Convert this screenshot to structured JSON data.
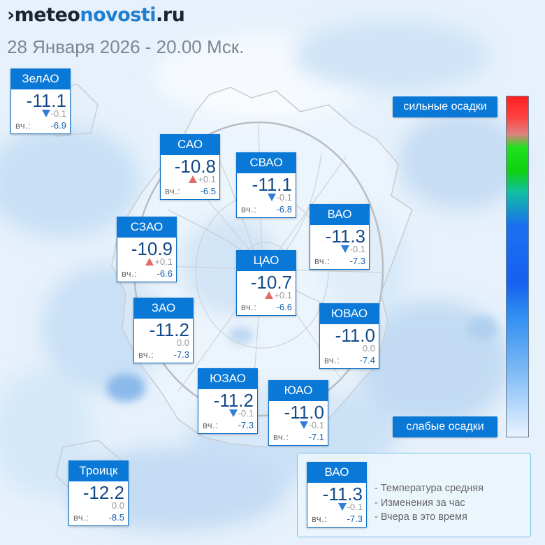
{
  "logo": {
    "mark": "›",
    "part1": "meteo",
    "part2": "novosti",
    "part3": ".ru"
  },
  "date": "28 Января 2026 - 20.00 Мск.",
  "colors": {
    "accent": "#0a78d6",
    "up": "#e46a6a",
    "down": "#2f7fd6",
    "temp": "#134a8a"
  },
  "districts": [
    {
      "id": "zelao",
      "name": "ЗелАО",
      "temp": "-11.1",
      "dir": "down",
      "change": "-0.1",
      "yesterday_label": "вч.:",
      "yesterday": "-6.9"
    },
    {
      "id": "sao",
      "name": "САО",
      "temp": "-10.8",
      "dir": "up",
      "change": "+0.1",
      "yesterday_label": "вч.:",
      "yesterday": "-6.5"
    },
    {
      "id": "svao",
      "name": "СВАО",
      "temp": "-11.1",
      "dir": "down",
      "change": "-0.1",
      "yesterday_label": "вч.:",
      "yesterday": "-6.8"
    },
    {
      "id": "vao",
      "name": "ВАО",
      "temp": "-11.3",
      "dir": "down",
      "change": "-0.1",
      "yesterday_label": "вч.:",
      "yesterday": "-7.3"
    },
    {
      "id": "szao",
      "name": "СЗАО",
      "temp": "-10.9",
      "dir": "up",
      "change": "+0.1",
      "yesterday_label": "вч.:",
      "yesterday": "-6.6"
    },
    {
      "id": "cao",
      "name": "ЦАО",
      "temp": "-10.7",
      "dir": "up",
      "change": "+0.1",
      "yesterday_label": "вч.:",
      "yesterday": "-6.6"
    },
    {
      "id": "zao",
      "name": "ЗАО",
      "temp": "-11.2",
      "dir": "none",
      "change": "0.0",
      "yesterday_label": "вч.:",
      "yesterday": "-7.3"
    },
    {
      "id": "yuvao",
      "name": "ЮВАО",
      "temp": "-11.0",
      "dir": "none",
      "change": "0.0",
      "yesterday_label": "вч.:",
      "yesterday": "-7.4"
    },
    {
      "id": "yuzao",
      "name": "ЮЗАО",
      "temp": "-11.2",
      "dir": "down",
      "change": "-0.1",
      "yesterday_label": "вч.:",
      "yesterday": "-7.3"
    },
    {
      "id": "yuao",
      "name": "ЮАО",
      "temp": "-11.0",
      "dir": "down",
      "change": "-0.1",
      "yesterday_label": "вч.:",
      "yesterday": "-7.1"
    },
    {
      "id": "troitsk",
      "name": "Троицк",
      "temp": "-12.2",
      "dir": "none",
      "change": "0.0",
      "yesterday_label": "вч.:",
      "yesterday": "-8.5"
    }
  ],
  "scale": {
    "top_label": "сильные осадки",
    "bottom_label": "слабые осадки"
  },
  "legend": {
    "sample": {
      "name": "ВАО",
      "temp": "-11.3",
      "dir": "down",
      "change": "-0.1",
      "yesterday_label": "вч.:",
      "yesterday": "-7.3"
    },
    "lines": [
      "- Температура средняя",
      "- Изменения за час",
      "- Вчера в это время"
    ]
  }
}
